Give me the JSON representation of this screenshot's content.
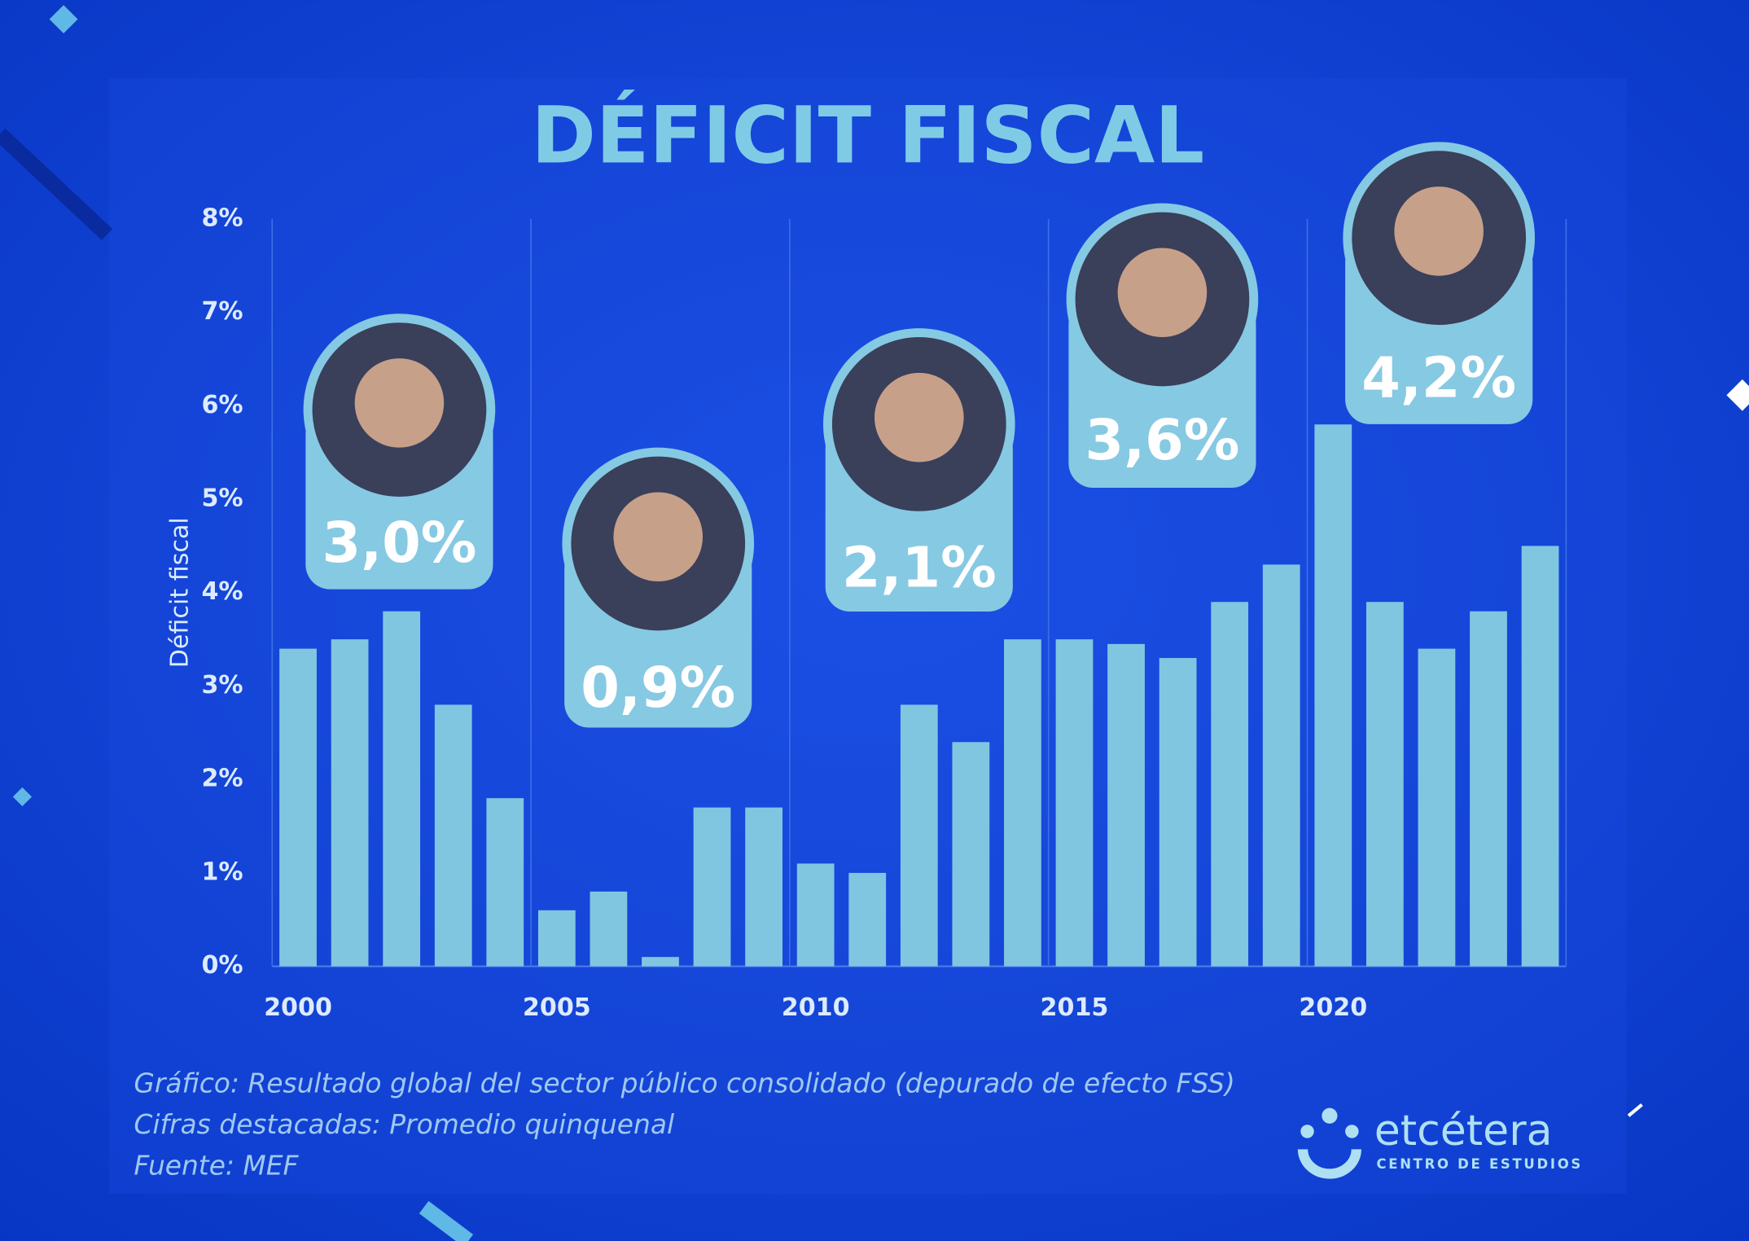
{
  "chart_data": {
    "type": "bar",
    "title": "DÉFICIT FISCAL",
    "y_label": "Déficit fiscal",
    "x": [
      2000,
      2001,
      2002,
      2003,
      2004,
      2005,
      2006,
      2007,
      2008,
      2009,
      2010,
      2011,
      2012,
      2013,
      2014,
      2015,
      2016,
      2017,
      2018,
      2019,
      2020,
      2021,
      2022,
      2023,
      2024
    ],
    "values": [
      3.4,
      3.5,
      3.8,
      2.8,
      1.8,
      0.6,
      0.8,
      0.1,
      1.7,
      1.7,
      1.1,
      1.0,
      2.8,
      2.4,
      3.5,
      3.5,
      3.45,
      3.3,
      3.9,
      4.3,
      5.8,
      3.9,
      3.4,
      3.8,
      4.5
    ],
    "color": "#80c6e1",
    "xlim": [
      1999.5,
      2024.5
    ],
    "xticks": [
      2000,
      2005,
      2010,
      2015,
      2020
    ],
    "ylim": [
      0,
      8
    ],
    "yticks": [
      {
        "value": 0,
        "label": "0%"
      },
      {
        "value": 1,
        "label": "1%"
      },
      {
        "value": 2,
        "label": "2%"
      },
      {
        "value": 3,
        "label": "3%"
      },
      {
        "value": 4,
        "label": "4%"
      },
      {
        "value": 5,
        "label": "5%"
      },
      {
        "value": 6,
        "label": "6%"
      },
      {
        "value": 7,
        "label": "7%"
      },
      {
        "value": 8,
        "label": "8%"
      }
    ],
    "grid": true,
    "highlights": {
      "values": [
        3.0,
        0.9,
        2.1,
        3.6,
        4.2
      ],
      "value_labels": [
        "3,0%",
        "0,9%",
        "2,1%",
        "3,6%",
        "4,2%"
      ]
    },
    "notes": [
      "Gráfico: Resultado global del sector público consolidado (depurado de efecto FSS)",
      "Cifras destacadas: Promedio quinquenal",
      "Fuente: MEF"
    ],
    "logo": {
      "name": "etcétera",
      "subtitle": "CENTRO DE ESTUDIOS"
    }
  }
}
